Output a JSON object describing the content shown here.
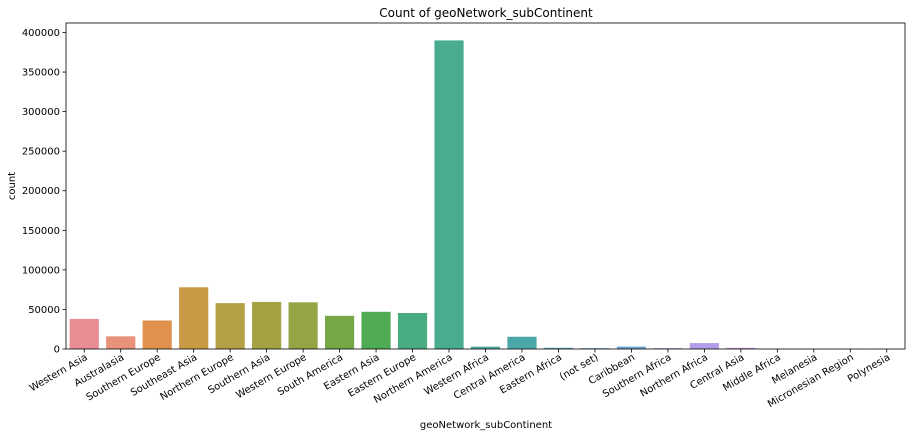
{
  "chart_data": {
    "type": "bar",
    "title": "Count of geoNetwork_subContinent",
    "xlabel": "geoNetwork_subContinent",
    "ylabel": "count",
    "ylim": [
      0,
      412000
    ],
    "yticks": [
      0,
      50000,
      100000,
      150000,
      200000,
      250000,
      300000,
      350000,
      400000
    ],
    "ytick_labels": [
      "0",
      "50000",
      "100000",
      "150000",
      "200000",
      "250000",
      "300000",
      "350000",
      "400000"
    ],
    "grid": false,
    "categories": [
      "Western Asia",
      "Australasia",
      "Southern Europe",
      "Southeast Asia",
      "Northern Europe",
      "Southern Asia",
      "Western Europe",
      "South America",
      "Eastern Asia",
      "Eastern Europe",
      "Northern America",
      "Western Africa",
      "Central America",
      "Eastern Africa",
      "(not set)",
      "Caribbean",
      "Southern Africa",
      "Northern Africa",
      "Central Asia",
      "Middle Africa",
      "Melanesia",
      "Micronesian Region",
      "Polynesia"
    ],
    "values": [
      38000,
      16000,
      36000,
      78000,
      58000,
      59500,
      59000,
      42000,
      47000,
      45500,
      390000,
      3000,
      15500,
      1500,
      1000,
      3000,
      1000,
      7500,
      1500,
      300,
      200,
      100,
      50
    ],
    "colors": [
      "#e98d94",
      "#e8917b",
      "#e0914d",
      "#c99a45",
      "#b5a046",
      "#a4a344",
      "#93a544",
      "#76a847",
      "#4eab53",
      "#4aad81",
      "#4aac8f",
      "#4aaa9c",
      "#4ba7a8",
      "#4fa7b4",
      "#52a6c1",
      "#6aa4d4",
      "#9aa3e4",
      "#b49de9",
      "#cd96e6",
      "#df8fd8",
      "#e88bc5",
      "#ec8cb2",
      "#ef8fa1"
    ]
  }
}
